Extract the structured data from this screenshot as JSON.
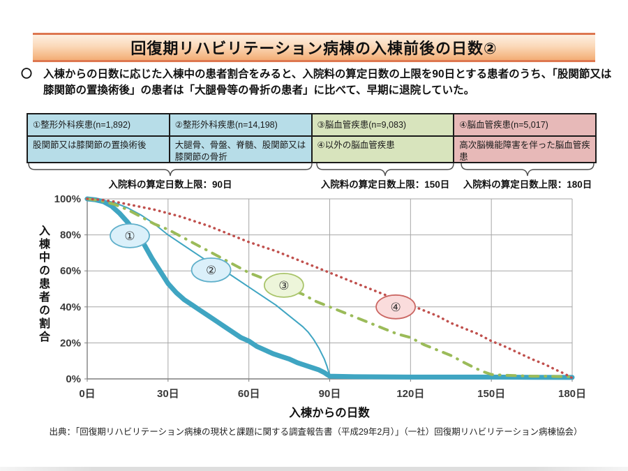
{
  "title": "回復期リハビリテーション病棟の入棟前後の日数②",
  "lead": {
    "marker": "〇",
    "text": "入棟からの日数に応じた入棟中の患者割合をみると、入院料の算定日数の上限を90日とする患者のうち、「股関節又は膝関節の置換術後」の患者は「大腿骨等の骨折の患者」に比べて、早期に退院していた。"
  },
  "category_table": {
    "columns": [
      {
        "header": "①整形外科疾患(n=1,892)",
        "detail": "股関節又は膝関節の置換術後",
        "fill": "#b7dde8"
      },
      {
        "header": "②整形外科疾患(n=14,198)",
        "detail": "大腿骨、骨盤、脊髄、股関節又は膝関節の骨折",
        "fill": "#b7dde8"
      },
      {
        "header": "③脳血管疾患(n=9,083)",
        "detail": "④以外の脳血管疾患",
        "fill": "#d8e4bd"
      },
      {
        "header": "④脳血管疾患(n=5,017)",
        "detail": "高次脳機能障害を伴った脳血管疾患",
        "fill": "#e7b9b8"
      }
    ]
  },
  "limit_brackets": [
    {
      "label": "入院料の算定日数上限：90日"
    },
    {
      "label": "入院料の算定日数上限：150日"
    },
    {
      "label": "入院料の算定日数上限：180日"
    }
  ],
  "chart_data": {
    "type": "line",
    "title": "",
    "xlabel": "入棟からの日数",
    "ylabel": "入棟中の患者の割合",
    "xlim": [
      0,
      180
    ],
    "ylim": [
      0,
      100
    ],
    "grid": true,
    "legend_position": "in-plot ovals ①②③④",
    "x_ticks": [
      {
        "value": 0,
        "label": "0日"
      },
      {
        "value": 30,
        "label": "30日"
      },
      {
        "value": 60,
        "label": "60日"
      },
      {
        "value": 90,
        "label": "90日"
      },
      {
        "value": 120,
        "label": "120日"
      },
      {
        "value": 150,
        "label": "150日"
      },
      {
        "value": 180,
        "label": "180日"
      }
    ],
    "y_ticks": [
      {
        "value": 0,
        "label": "0%"
      },
      {
        "value": 20,
        "label": "20%"
      },
      {
        "value": 40,
        "label": "40%"
      },
      {
        "value": 60,
        "label": "60%"
      },
      {
        "value": 80,
        "label": "80%"
      },
      {
        "value": 100,
        "label": "100%"
      }
    ],
    "series": [
      {
        "name": "①股関節又は膝関節の置換術後 (n=1,892)",
        "color": "#3fa5c2",
        "width": 7,
        "dash": "solid",
        "points": [
          [
            0,
            100
          ],
          [
            3,
            99.5
          ],
          [
            6,
            98.5
          ],
          [
            9,
            96
          ],
          [
            12,
            92
          ],
          [
            15,
            87
          ],
          [
            18,
            81
          ],
          [
            21,
            75
          ],
          [
            24,
            67
          ],
          [
            27,
            60
          ],
          [
            30,
            53
          ],
          [
            33,
            48
          ],
          [
            36,
            44
          ],
          [
            39,
            41
          ],
          [
            42,
            38
          ],
          [
            45,
            35
          ],
          [
            48,
            32
          ],
          [
            51,
            29
          ],
          [
            54,
            26
          ],
          [
            57,
            23
          ],
          [
            60,
            21
          ],
          [
            63,
            18
          ],
          [
            66,
            16
          ],
          [
            69,
            14
          ],
          [
            72,
            12.5
          ],
          [
            75,
            11
          ],
          [
            78,
            9
          ],
          [
            81,
            7.5
          ],
          [
            84,
            6
          ],
          [
            86,
            5
          ],
          [
            88,
            3.5
          ],
          [
            89,
            2.5
          ],
          [
            90,
            1.5
          ],
          [
            100,
            1.2
          ],
          [
            120,
            1
          ],
          [
            150,
            1
          ],
          [
            165,
            0.9
          ],
          [
            180,
            0.8
          ]
        ]
      },
      {
        "name": "②大腿骨、骨盤、脊髄、股関節又は膝関節の骨折 (n=14,198)",
        "color": "#3fa5c2",
        "width": 2,
        "dash": "solid",
        "points": [
          [
            0,
            100
          ],
          [
            5,
            99.5
          ],
          [
            10,
            98
          ],
          [
            15,
            95
          ],
          [
            20,
            91
          ],
          [
            25,
            86
          ],
          [
            30,
            80
          ],
          [
            35,
            75
          ],
          [
            40,
            70
          ],
          [
            45,
            65
          ],
          [
            50,
            61
          ],
          [
            55,
            56
          ],
          [
            60,
            51
          ],
          [
            65,
            46
          ],
          [
            70,
            41
          ],
          [
            75,
            35
          ],
          [
            80,
            29
          ],
          [
            82,
            26
          ],
          [
            84,
            22
          ],
          [
            86,
            17
          ],
          [
            88,
            11
          ],
          [
            89,
            7
          ],
          [
            90,
            2
          ],
          [
            91,
            0.7
          ],
          [
            93,
            0.5
          ]
        ]
      },
      {
        "name": "③④以外の脳血管疾患 (n=9,083)",
        "color": "#9bbb59",
        "width": 4,
        "dash": "dashdot",
        "points": [
          [
            0,
            100
          ],
          [
            5,
            99
          ],
          [
            10,
            97
          ],
          [
            15,
            94
          ],
          [
            20,
            90
          ],
          [
            25,
            86
          ],
          [
            30,
            83
          ],
          [
            35,
            79
          ],
          [
            40,
            75
          ],
          [
            45,
            71
          ],
          [
            50,
            67
          ],
          [
            55,
            63
          ],
          [
            60,
            59
          ],
          [
            65,
            56
          ],
          [
            70,
            53
          ],
          [
            75,
            50
          ],
          [
            80,
            47
          ],
          [
            85,
            43
          ],
          [
            90,
            40
          ],
          [
            95,
            37
          ],
          [
            100,
            34
          ],
          [
            105,
            31
          ],
          [
            110,
            28
          ],
          [
            115,
            25
          ],
          [
            120,
            23
          ],
          [
            125,
            19
          ],
          [
            130,
            16
          ],
          [
            135,
            13
          ],
          [
            140,
            9
          ],
          [
            144,
            6
          ],
          [
            147,
            4
          ],
          [
            150,
            2.5
          ],
          [
            155,
            2
          ],
          [
            160,
            1.8
          ],
          [
            165,
            1.5
          ],
          [
            170,
            1.5
          ],
          [
            175,
            1.3
          ],
          [
            180,
            1.2
          ]
        ]
      },
      {
        "name": "④高次脳機能障害を伴った脳血管疾患 (n=5,017)",
        "color": "#c0504d",
        "width": 3.5,
        "dash": "dot",
        "points": [
          [
            0,
            100
          ],
          [
            5,
            99.5
          ],
          [
            10,
            98.5
          ],
          [
            15,
            97
          ],
          [
            20,
            95.5
          ],
          [
            25,
            94
          ],
          [
            30,
            92
          ],
          [
            35,
            90
          ],
          [
            40,
            87.5
          ],
          [
            45,
            85
          ],
          [
            50,
            82
          ],
          [
            55,
            79
          ],
          [
            60,
            76
          ],
          [
            65,
            73.5
          ],
          [
            70,
            71
          ],
          [
            75,
            68
          ],
          [
            80,
            65
          ],
          [
            85,
            62
          ],
          [
            90,
            59
          ],
          [
            95,
            56
          ],
          [
            100,
            53
          ],
          [
            105,
            50
          ],
          [
            110,
            47
          ],
          [
            115,
            44
          ],
          [
            120,
            41
          ],
          [
            125,
            38
          ],
          [
            130,
            35
          ],
          [
            135,
            31
          ],
          [
            140,
            28
          ],
          [
            145,
            25
          ],
          [
            150,
            21
          ],
          [
            155,
            18
          ],
          [
            160,
            14.5
          ],
          [
            165,
            11
          ],
          [
            170,
            8
          ],
          [
            174,
            5
          ],
          [
            177,
            3
          ],
          [
            180,
            0.5
          ]
        ]
      }
    ],
    "markers": [
      {
        "label": "①",
        "x": 15.8,
        "y": 79.5,
        "fill": "#dbf0fa",
        "stroke": "#5fafca"
      },
      {
        "label": "②",
        "x": 46.0,
        "y": 60.5,
        "fill": "#dbf0fa",
        "stroke": "#5fafca"
      },
      {
        "label": "③",
        "x": 73.0,
        "y": 52.0,
        "fill": "#edf5da",
        "stroke": "#a9c46a"
      },
      {
        "label": "④",
        "x": 114.5,
        "y": 40.0,
        "fill": "#fadcdc",
        "stroke": "#cb6763"
      }
    ]
  },
  "source": "出典：「回復期リハビリテーション病棟の現状と課題に関する調査報告書（平成29年2月）」（一社）回復期リハビリテーション病棟協会）"
}
